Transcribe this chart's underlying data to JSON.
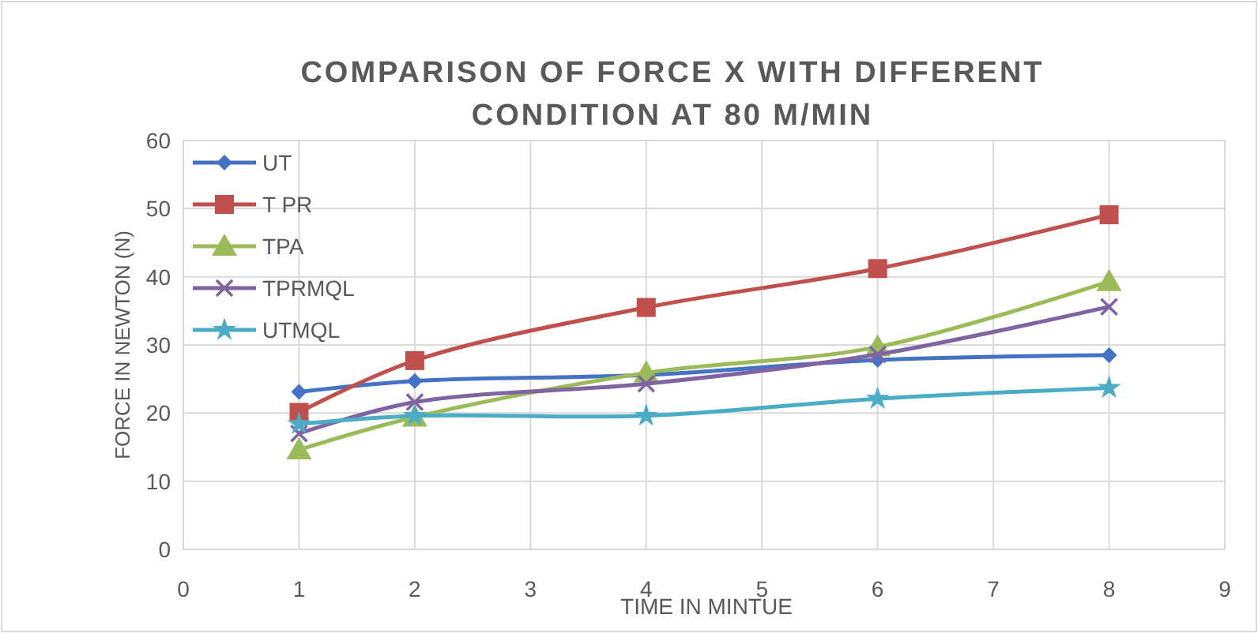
{
  "chart_data": {
    "type": "line",
    "title": "COMPARISON OF FORCE X WITH DIFFERENT CONDITION AT 80 M/MIN",
    "xlabel": "TIME IN MINTUE",
    "ylabel": "FORCE IN NEWTON (N)",
    "x": [
      1,
      2,
      4,
      6,
      8
    ],
    "xlim": [
      0,
      9
    ],
    "xticks": [
      0,
      1,
      2,
      3,
      4,
      5,
      6,
      7,
      8,
      9
    ],
    "ylim": [
      0,
      60
    ],
    "yticks": [
      0,
      10,
      20,
      30,
      40,
      50,
      60
    ],
    "grid": true,
    "legend": "top left",
    "series": [
      {
        "name": "UT",
        "color": "#4472c4",
        "marker": "diamond",
        "values": [
          23.1,
          24.7,
          25.6,
          27.8,
          28.5
        ]
      },
      {
        "name": "T PR",
        "color": "#c0504d",
        "marker": "square",
        "values": [
          20.1,
          27.7,
          35.5,
          41.2,
          49.1
        ]
      },
      {
        "name": "TPA",
        "color": "#9bbb59",
        "marker": "triangle",
        "values": [
          14.6,
          19.4,
          25.9,
          29.7,
          39.3
        ]
      },
      {
        "name": "TPRMQL",
        "color": "#8064a2",
        "marker": "cross",
        "values": [
          17.0,
          21.6,
          24.3,
          28.6,
          35.6
        ]
      },
      {
        "name": "UTMQL",
        "color": "#4bacc6",
        "marker": "star",
        "values": [
          18.4,
          19.6,
          19.6,
          22.1,
          23.7
        ]
      }
    ]
  }
}
